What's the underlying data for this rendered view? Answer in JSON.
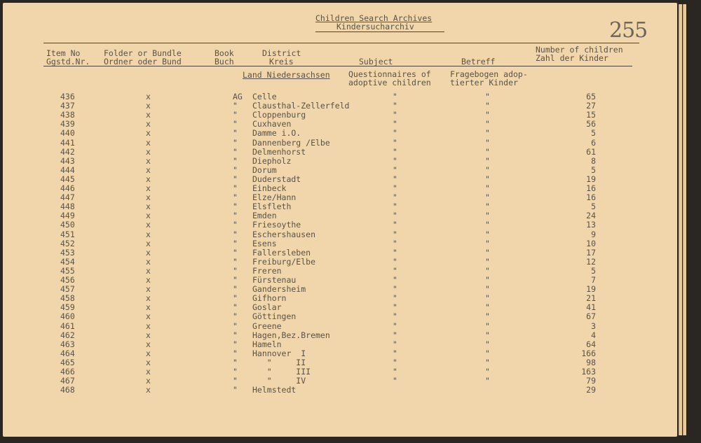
{
  "header": {
    "title": "Children Search Archives",
    "subtitle": "Kindersucharchiv",
    "page_number": "255"
  },
  "columns": {
    "item_no": [
      "Item No",
      "Ggstd.Nr."
    ],
    "folder": [
      "Folder or Bundle",
      "Ordner oder Bund"
    ],
    "book": [
      "Book",
      "Buch"
    ],
    "district": [
      "District",
      "Kreis"
    ],
    "subject": "Subject",
    "betreff": "Betreff",
    "count": [
      "Number of children",
      "Zahl der Kinder"
    ]
  },
  "section": {
    "land": "Land Niedersachsen",
    "subject": [
      "Questionnaires of",
      "adoptive children"
    ],
    "betreff": [
      "Fragebogen adop-",
      "tierter Kinder"
    ]
  },
  "rows": [
    {
      "no": "436",
      "folder": "x",
      "book": "AG",
      "district": "Celle",
      "subject": "\"",
      "betreff": "\"",
      "count": "65"
    },
    {
      "no": "437",
      "folder": "x",
      "book": "\"",
      "district": "Clausthal-Zellerfeld",
      "subject": "\"",
      "betreff": "\"",
      "count": "27"
    },
    {
      "no": "438",
      "folder": "x",
      "book": "\"",
      "district": "Cloppenburg",
      "subject": "\"",
      "betreff": "\"",
      "count": "15"
    },
    {
      "no": "439",
      "folder": "x",
      "book": "\"",
      "district": "Cuxhaven",
      "subject": "\"",
      "betreff": "\"",
      "count": "56"
    },
    {
      "no": "440",
      "folder": "x",
      "book": "\"",
      "district": "Damme i.O.",
      "subject": "\"",
      "betreff": "\"",
      "count": "5"
    },
    {
      "no": "441",
      "folder": "x",
      "book": "\"",
      "district": "Dannenberg /Elbe",
      "subject": "\"",
      "betreff": "\"",
      "count": "6"
    },
    {
      "no": "442",
      "folder": "x",
      "book": "\"",
      "district": "Delmenhorst",
      "subject": "\"",
      "betreff": "\"",
      "count": "61"
    },
    {
      "no": "443",
      "folder": "x",
      "book": "\"",
      "district": "Diepholz",
      "subject": "\"",
      "betreff": "\"",
      "count": "8"
    },
    {
      "no": "444",
      "folder": "x",
      "book": "\"",
      "district": "Dorum",
      "subject": "\"",
      "betreff": "\"",
      "count": "5"
    },
    {
      "no": "445",
      "folder": "x",
      "book": "\"",
      "district": "Duderstadt",
      "subject": "\"",
      "betreff": "\"",
      "count": "19"
    },
    {
      "no": "446",
      "folder": "x",
      "book": "\"",
      "district": "Einbeck",
      "subject": "\"",
      "betreff": "\"",
      "count": "16"
    },
    {
      "no": "447",
      "folder": "x",
      "book": "\"",
      "district": "Elze/Hann",
      "subject": "\"",
      "betreff": "\"",
      "count": "16"
    },
    {
      "no": "448",
      "folder": "x",
      "book": "\"",
      "district": "Elsfleth",
      "subject": "\"",
      "betreff": "\"",
      "count": "5"
    },
    {
      "no": "449",
      "folder": "x",
      "book": "\"",
      "district": "Emden",
      "subject": "\"",
      "betreff": "\"",
      "count": "24"
    },
    {
      "no": "450",
      "folder": "x",
      "book": "\"",
      "district": "Friesoythe",
      "subject": "\"",
      "betreff": "\"",
      "count": "13"
    },
    {
      "no": "451",
      "folder": "x",
      "book": "\"",
      "district": "Eschershausen",
      "subject": "\"",
      "betreff": "\"",
      "count": "9"
    },
    {
      "no": "452",
      "folder": "x",
      "book": "\"",
      "district": "Esens",
      "subject": "\"",
      "betreff": "\"",
      "count": "10"
    },
    {
      "no": "453",
      "folder": "x",
      "book": "\"",
      "district": "Fallersleben",
      "subject": "\"",
      "betreff": "\"",
      "count": "17"
    },
    {
      "no": "454",
      "folder": "x",
      "book": "\"",
      "district": "Freiburg/Elbe",
      "subject": "\"",
      "betreff": "\"",
      "count": "12"
    },
    {
      "no": "455",
      "folder": "x",
      "book": "\"",
      "district": "Freren",
      "subject": "\"",
      "betreff": "\"",
      "count": "5"
    },
    {
      "no": "456",
      "folder": "x",
      "book": "\"",
      "district": "Fürstenau",
      "subject": "\"",
      "betreff": "\"",
      "count": "7"
    },
    {
      "no": "457",
      "folder": "x",
      "book": "\"",
      "district": "Gandersheim",
      "subject": "\"",
      "betreff": "\"",
      "count": "19"
    },
    {
      "no": "458",
      "folder": "x",
      "book": "\"",
      "district": "Gifhorn",
      "subject": "\"",
      "betreff": "\"",
      "count": "21"
    },
    {
      "no": "459",
      "folder": "x",
      "book": "\"",
      "district": "Goslar",
      "subject": "\"",
      "betreff": "\"",
      "count": "41"
    },
    {
      "no": "460",
      "folder": "x",
      "book": "\"",
      "district": "Göttingen",
      "subject": "\"",
      "betreff": "\"",
      "count": "67"
    },
    {
      "no": "461",
      "folder": "x",
      "book": "\"",
      "district": "Greene",
      "subject": "\"",
      "betreff": "\"",
      "count": "3"
    },
    {
      "no": "462",
      "folder": "x",
      "book": "\"",
      "district": "Hagen,Bez.Bremen",
      "subject": "\"",
      "betreff": "\"",
      "count": "4"
    },
    {
      "no": "463",
      "folder": "x",
      "book": "\"",
      "district": "Hameln",
      "subject": "\"",
      "betreff": "\"",
      "count": "64"
    },
    {
      "no": "464",
      "folder": "x",
      "book": "\"",
      "district": "Hannover  I",
      "subject": "\"",
      "betreff": "\"",
      "count": "166"
    },
    {
      "no": "465",
      "folder": "x",
      "book": "\"",
      "district": "   \"     II",
      "subject": "\"",
      "betreff": "\"",
      "count": "98"
    },
    {
      "no": "466",
      "folder": "x",
      "book": "\"",
      "district": "   \"     III",
      "subject": "\"",
      "betreff": "\"",
      "count": "163"
    },
    {
      "no": "467",
      "folder": "x",
      "book": "\"",
      "district": "   \"     IV",
      "subject": "\"",
      "betreff": "\"",
      "count": "79"
    },
    {
      "no": "468",
      "folder": "x",
      "book": "\"",
      "district": "Helmstedt",
      "subject": "",
      "betreff": "",
      "count": "29"
    }
  ]
}
